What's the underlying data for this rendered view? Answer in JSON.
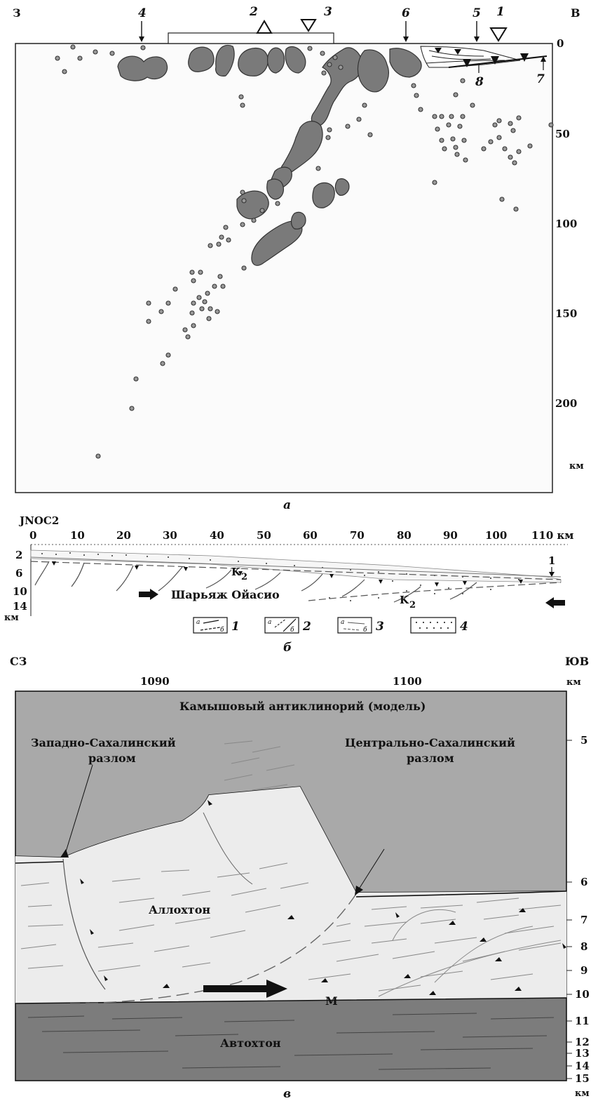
{
  "panel_a": {
    "caption": "а",
    "west_label": "З",
    "east_label": "В",
    "depth_ticks": [
      "0",
      "50",
      "100",
      "150",
      "200"
    ],
    "depth_unit": "км",
    "markers": [
      "4",
      "2",
      "3",
      "6",
      "5",
      "1",
      "8",
      "7"
    ]
  },
  "panel_b": {
    "caption": "б",
    "profile_name": "JNOC2",
    "x_ticks": [
      "0",
      "10",
      "20",
      "30",
      "40",
      "50",
      "60",
      "70",
      "80",
      "90",
      "100",
      "110 км"
    ],
    "depth_ticks": [
      "2",
      "6",
      "10",
      "14"
    ],
    "depth_unit": "км",
    "thrust_label": "Шарьяж Ойасио",
    "unit_k2_a": "K",
    "unit_k2_b": "K",
    "unit_k2_sub": "2",
    "point_label": "1",
    "legend": [
      {
        "a": "а",
        "b": "б",
        "num": "1"
      },
      {
        "a": "а",
        "b": "б",
        "num": "2"
      },
      {
        "a": "а",
        "b": "б",
        "num": "3"
      },
      {
        "num": "4"
      }
    ]
  },
  "panel_v": {
    "caption": "в",
    "nw_label": "СЗ",
    "se_label": "ЮВ",
    "x_ticks": [
      "1090",
      "1100"
    ],
    "x_unit": "км",
    "title": "Камышовый антиклинорий (модель)",
    "fault_west": "Западно-Сахалинский\nразлом",
    "fault_west_1": "Западно-Сахалинский",
    "fault_west_2": "разлом",
    "fault_central_1": "Центрально-Сахалинский",
    "fault_central_2": "разлом",
    "allochthon": "Аллохтон",
    "autochthon": "Автохтон",
    "moho": "М",
    "depth_ticks": [
      "5",
      "6",
      "7",
      "8",
      "9",
      "10",
      "11",
      "12",
      "13",
      "14",
      "15"
    ],
    "depth_unit": "км"
  }
}
